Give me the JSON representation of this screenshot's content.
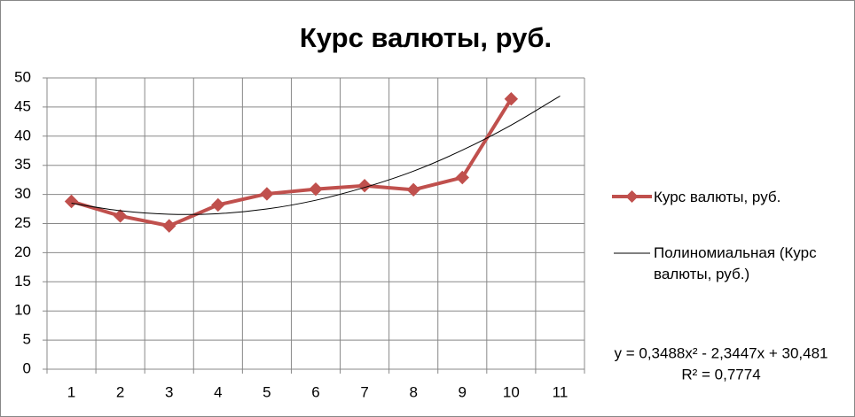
{
  "chart_data": {
    "type": "line",
    "title": "Курс валюты, руб.",
    "categories": [
      "1",
      "2",
      "3",
      "4",
      "5",
      "6",
      "7",
      "8",
      "9",
      "10",
      "11"
    ],
    "series": [
      {
        "name": "Курс валюты, руб.",
        "color": "#c0504d",
        "values": [
          28.8,
          26.3,
          24.6,
          28.2,
          30.1,
          30.9,
          31.5,
          30.8,
          32.9,
          46.4,
          null
        ]
      },
      {
        "name": "Полиномиальная (Курс валюты, руб.)",
        "color": "#000000",
        "values": [
          28.5,
          27.2,
          26.6,
          26.7,
          27.5,
          29.0,
          31.2,
          34.0,
          37.6,
          41.9,
          46.9
        ]
      }
    ],
    "trendline_equation": "y = 0,3488x² - 2,3447x + 30,481",
    "trendline_r2": "R² = 0,7774",
    "ylim": [
      0,
      50
    ],
    "yticks": [
      0,
      5,
      10,
      15,
      20,
      25,
      30,
      35,
      40,
      45,
      50
    ],
    "grid": true
  }
}
